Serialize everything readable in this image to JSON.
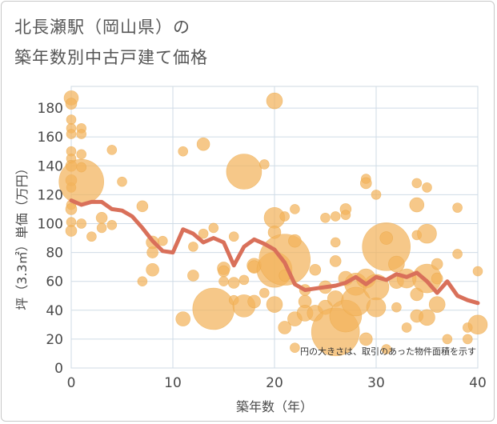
{
  "chart_data": {
    "type": "scatter",
    "title_lines": [
      "北長瀬駅（岡山県）の",
      "築年数別中古戸建て価格"
    ],
    "xlabel": "築年数（年）",
    "ylabel": "坪（3.3㎡）単価（万円）",
    "xlim": [
      0,
      40
    ],
    "ylim": [
      0,
      195
    ],
    "xticks": [
      0,
      10,
      20,
      30,
      40
    ],
    "yticks": [
      0,
      20,
      40,
      60,
      80,
      100,
      120,
      140,
      160,
      180
    ],
    "note": "円の大きさは、取引のあった物件面積を示す",
    "bubble_color": "#f2b35c",
    "line_color": "#d9705a",
    "trend_line": {
      "x": [
        0,
        1,
        2,
        3,
        4,
        5,
        6,
        7,
        8,
        9,
        10,
        11,
        12,
        13,
        14,
        15,
        16,
        17,
        18,
        19,
        20,
        21,
        22,
        23,
        24,
        25,
        26,
        27,
        28,
        29,
        30,
        31,
        32,
        33,
        34,
        35,
        36,
        37,
        38,
        39,
        40
      ],
      "y": [
        116,
        113,
        115,
        115,
        110,
        109,
        105,
        97,
        88,
        81,
        80,
        96,
        93,
        87,
        90,
        87,
        71,
        84,
        89,
        86,
        82,
        73,
        58,
        54,
        55,
        56,
        57,
        59,
        63,
        58,
        63,
        61,
        65,
        63,
        66,
        60,
        52,
        60,
        50,
        47,
        45
      ]
    },
    "bubbles": [
      {
        "x": 0,
        "y": 187,
        "s": 9
      },
      {
        "x": 0,
        "y": 183,
        "s": 7
      },
      {
        "x": 0,
        "y": 172,
        "s": 6
      },
      {
        "x": 0,
        "y": 166,
        "s": 6
      },
      {
        "x": 0,
        "y": 162,
        "s": 6
      },
      {
        "x": 0,
        "y": 150,
        "s": 6
      },
      {
        "x": 0,
        "y": 145,
        "s": 6
      },
      {
        "x": 0,
        "y": 140,
        "s": 7
      },
      {
        "x": 0,
        "y": 130,
        "s": 7
      },
      {
        "x": 0,
        "y": 125,
        "s": 6
      },
      {
        "x": 0,
        "y": 113,
        "s": 6
      },
      {
        "x": 0,
        "y": 110,
        "s": 7
      },
      {
        "x": 0,
        "y": 101,
        "s": 6
      },
      {
        "x": 0,
        "y": 95,
        "s": 7
      },
      {
        "x": 1,
        "y": 129,
        "s": 28
      },
      {
        "x": 1,
        "y": 166,
        "s": 6
      },
      {
        "x": 1,
        "y": 162,
        "s": 6
      },
      {
        "x": 1,
        "y": 148,
        "s": 6
      },
      {
        "x": 1,
        "y": 139,
        "s": 6
      },
      {
        "x": 1,
        "y": 100,
        "s": 6
      },
      {
        "x": 2,
        "y": 91,
        "s": 6
      },
      {
        "x": 3,
        "y": 104,
        "s": 7
      },
      {
        "x": 3,
        "y": 97,
        "s": 6
      },
      {
        "x": 4,
        "y": 151,
        "s": 6
      },
      {
        "x": 4,
        "y": 99,
        "s": 6
      },
      {
        "x": 5,
        "y": 129,
        "s": 6
      },
      {
        "x": 7,
        "y": 112,
        "s": 7
      },
      {
        "x": 7,
        "y": 60,
        "s": 6
      },
      {
        "x": 8,
        "y": 87,
        "s": 8
      },
      {
        "x": 8,
        "y": 80,
        "s": 7
      },
      {
        "x": 8,
        "y": 68,
        "s": 8
      },
      {
        "x": 9,
        "y": 88,
        "s": 6
      },
      {
        "x": 11,
        "y": 150,
        "s": 6
      },
      {
        "x": 11,
        "y": 34,
        "s": 9
      },
      {
        "x": 12,
        "y": 84,
        "s": 6
      },
      {
        "x": 12,
        "y": 64,
        "s": 7
      },
      {
        "x": 13,
        "y": 155,
        "s": 8
      },
      {
        "x": 13,
        "y": 93,
        "s": 6
      },
      {
        "x": 14,
        "y": 97,
        "s": 6
      },
      {
        "x": 14,
        "y": 41,
        "s": 26
      },
      {
        "x": 15,
        "y": 69,
        "s": 8
      },
      {
        "x": 15,
        "y": 67,
        "s": 7
      },
      {
        "x": 15,
        "y": 60,
        "s": 6
      },
      {
        "x": 16,
        "y": 91,
        "s": 6
      },
      {
        "x": 16,
        "y": 59,
        "s": 7
      },
      {
        "x": 16,
        "y": 47,
        "s": 6
      },
      {
        "x": 17,
        "y": 136,
        "s": 22
      },
      {
        "x": 17,
        "y": 61,
        "s": 6
      },
      {
        "x": 17,
        "y": 43,
        "s": 14
      },
      {
        "x": 18,
        "y": 71,
        "s": 9
      },
      {
        "x": 18,
        "y": 70,
        "s": 8
      },
      {
        "x": 18,
        "y": 46,
        "s": 8
      },
      {
        "x": 19,
        "y": 141,
        "s": 6
      },
      {
        "x": 19,
        "y": 52,
        "s": 6
      },
      {
        "x": 20,
        "y": 185,
        "s": 10
      },
      {
        "x": 20,
        "y": 104,
        "s": 13
      },
      {
        "x": 20,
        "y": 94,
        "s": 8
      },
      {
        "x": 20,
        "y": 68,
        "s": 22
      },
      {
        "x": 20,
        "y": 44,
        "s": 10
      },
      {
        "x": 21,
        "y": 105,
        "s": 6
      },
      {
        "x": 21,
        "y": 75,
        "s": 32
      },
      {
        "x": 21,
        "y": 64,
        "s": 7
      },
      {
        "x": 21,
        "y": 28,
        "s": 8
      },
      {
        "x": 22,
        "y": 110,
        "s": 6
      },
      {
        "x": 22,
        "y": 88,
        "s": 8
      },
      {
        "x": 22,
        "y": 34,
        "s": 9
      },
      {
        "x": 22,
        "y": 14,
        "s": 6
      },
      {
        "x": 23,
        "y": 54,
        "s": 7
      },
      {
        "x": 23,
        "y": 46,
        "s": 8
      },
      {
        "x": 23,
        "y": 38,
        "s": 10
      },
      {
        "x": 24,
        "y": 68,
        "s": 7
      },
      {
        "x": 24,
        "y": 38,
        "s": 10
      },
      {
        "x": 25,
        "y": 104,
        "s": 6
      },
      {
        "x": 25,
        "y": 56,
        "s": 8
      },
      {
        "x": 25,
        "y": 42,
        "s": 9
      },
      {
        "x": 26,
        "y": 105,
        "s": 6
      },
      {
        "x": 26,
        "y": 87,
        "s": 6
      },
      {
        "x": 26,
        "y": 74,
        "s": 7
      },
      {
        "x": 26,
        "y": 48,
        "s": 10
      },
      {
        "x": 26,
        "y": 25,
        "s": 30
      },
      {
        "x": 27,
        "y": 110,
        "s": 7
      },
      {
        "x": 27,
        "y": 106,
        "s": 6
      },
      {
        "x": 27,
        "y": 62,
        "s": 9
      },
      {
        "x": 27,
        "y": 36,
        "s": 20
      },
      {
        "x": 28,
        "y": 58,
        "s": 14
      },
      {
        "x": 28,
        "y": 46,
        "s": 18
      },
      {
        "x": 29,
        "y": 131,
        "s": 6
      },
      {
        "x": 29,
        "y": 128,
        "s": 7
      },
      {
        "x": 29,
        "y": 62,
        "s": 12
      },
      {
        "x": 29,
        "y": 20,
        "s": 8
      },
      {
        "x": 30,
        "y": 120,
        "s": 6
      },
      {
        "x": 30,
        "y": 56,
        "s": 16
      },
      {
        "x": 30,
        "y": 42,
        "s": 12
      },
      {
        "x": 31,
        "y": 84,
        "s": 30
      },
      {
        "x": 31,
        "y": 90,
        "s": 8
      },
      {
        "x": 31,
        "y": 13,
        "s": 6
      },
      {
        "x": 32,
        "y": 72,
        "s": 10
      },
      {
        "x": 32,
        "y": 60,
        "s": 9
      },
      {
        "x": 32,
        "y": 42,
        "s": 6
      },
      {
        "x": 33,
        "y": 62,
        "s": 12
      },
      {
        "x": 33,
        "y": 28,
        "s": 6
      },
      {
        "x": 34,
        "y": 128,
        "s": 6
      },
      {
        "x": 34,
        "y": 113,
        "s": 9
      },
      {
        "x": 34,
        "y": 92,
        "s": 6
      },
      {
        "x": 34,
        "y": 51,
        "s": 8
      },
      {
        "x": 34,
        "y": 36,
        "s": 8
      },
      {
        "x": 35,
        "y": 125,
        "s": 6
      },
      {
        "x": 35,
        "y": 93,
        "s": 12
      },
      {
        "x": 35,
        "y": 62,
        "s": 18
      },
      {
        "x": 35,
        "y": 35,
        "s": 10
      },
      {
        "x": 36,
        "y": 72,
        "s": 7
      },
      {
        "x": 36,
        "y": 62,
        "s": 7
      },
      {
        "x": 36,
        "y": 44,
        "s": 10
      },
      {
        "x": 37,
        "y": 20,
        "s": 6
      },
      {
        "x": 38,
        "y": 111,
        "s": 6
      },
      {
        "x": 38,
        "y": 79,
        "s": 6
      },
      {
        "x": 39,
        "y": 28,
        "s": 6
      },
      {
        "x": 39,
        "y": 20,
        "s": 6
      },
      {
        "x": 40,
        "y": 67,
        "s": 6
      },
      {
        "x": 40,
        "y": 30,
        "s": 12
      }
    ]
  }
}
